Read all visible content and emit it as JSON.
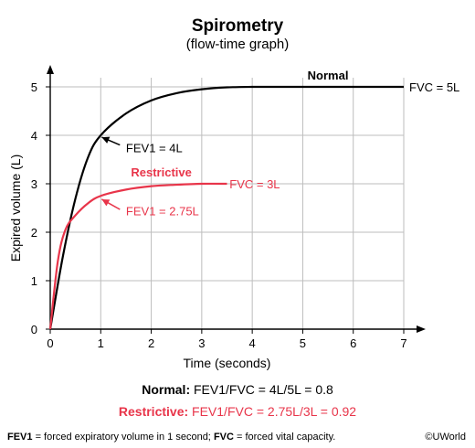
{
  "header": {
    "title": "Spirometry",
    "subtitle": "(flow-time graph)"
  },
  "chart_data": {
    "type": "line",
    "xlabel": "Time (seconds)",
    "ylabel": "Expired volume (L)",
    "xlim": [
      0,
      7
    ],
    "ylim": [
      0,
      5
    ],
    "xticks": [
      "0",
      "1",
      "2",
      "3",
      "4",
      "5",
      "6",
      "7"
    ],
    "yticks": [
      "0",
      "1",
      "2",
      "3",
      "4",
      "5"
    ],
    "grid": true,
    "series": [
      {
        "name": "Normal",
        "color": "#000000",
        "x": [
          0,
          0.25,
          0.5,
          0.75,
          1,
          1.5,
          2,
          2.5,
          3,
          3.5,
          4,
          4.5,
          5,
          6,
          7
        ],
        "y": [
          0,
          1.5,
          2.7,
          3.55,
          4.0,
          4.45,
          4.72,
          4.87,
          4.95,
          4.99,
          5,
          5,
          5,
          5,
          5
        ]
      },
      {
        "name": "Restrictive",
        "color": "#e8354a",
        "x": [
          0,
          0.15,
          0.3,
          0.5,
          0.75,
          1,
          1.5,
          2,
          2.5,
          3,
          3.5
        ],
        "y": [
          0,
          1.4,
          2.05,
          2.35,
          2.6,
          2.75,
          2.88,
          2.95,
          2.98,
          3,
          3
        ]
      }
    ],
    "annotations": {
      "normal_fvc": "FVC = 5L",
      "normal_fev1": "FEV1 = 4L",
      "restrictive_fvc": "FVC = 3L",
      "restrictive_fev1": "FEV1 = 2.75L"
    }
  },
  "formulas": {
    "normal_label": "Normal:",
    "normal_text": "FEV1/FVC = 4L/5L = 0.8",
    "restrictive_label": "Restrictive:",
    "restrictive_text": "FEV1/FVC = 2.75L/3L = 0.92"
  },
  "footnote": {
    "fev1_term": "FEV1",
    "fev1_def": " = forced expiratory volume in 1 second; ",
    "fvc_term": "FVC",
    "fvc_def": " = forced vital capacity."
  },
  "credit": "©UWorld"
}
